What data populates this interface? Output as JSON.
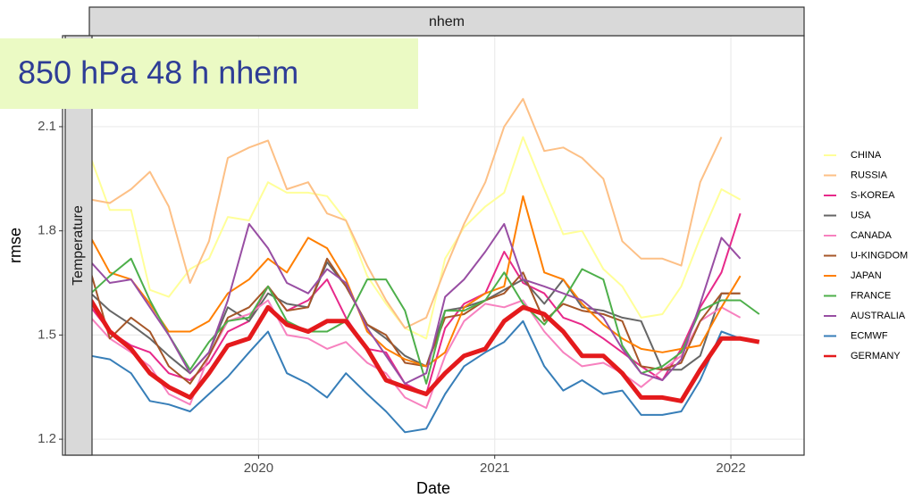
{
  "chart_data": {
    "type": "line",
    "title": "850 hPa 48 h nhem",
    "panel_label": "nhem",
    "row_label": "Temperature",
    "x_label": "Date",
    "y_label": "rmse",
    "x": [
      2019.29,
      2019.37,
      2019.46,
      2019.54,
      2019.62,
      2019.71,
      2019.79,
      2019.87,
      2019.96,
      2020.04,
      2020.12,
      2020.21,
      2020.29,
      2020.37,
      2020.46,
      2020.54,
      2020.62,
      2020.71,
      2020.79,
      2020.87,
      2020.96,
      2021.04,
      2021.12,
      2021.21,
      2021.29,
      2021.37,
      2021.46,
      2021.54,
      2021.62,
      2021.71,
      2021.79,
      2021.87,
      2021.96,
      2022.04,
      2022.12
    ],
    "xlim": [
      2019.17,
      2022.31
    ],
    "xticks": [
      2020,
      2021,
      2022
    ],
    "ylim": [
      1.154,
      2.362
    ],
    "yticks": [
      1.2,
      1.5,
      1.8,
      2.1
    ],
    "grid": true,
    "legend": "right",
    "series": [
      {
        "name": "CHINA",
        "color": "#ffff99",
        "width": 2,
        "values": [
          2.01,
          1.86,
          1.86,
          1.63,
          1.61,
          1.69,
          1.72,
          1.84,
          1.83,
          1.94,
          1.91,
          1.91,
          1.9,
          1.83,
          1.67,
          1.59,
          1.52,
          1.49,
          1.72,
          1.81,
          1.87,
          1.91,
          2.07,
          1.92,
          1.79,
          1.8,
          1.69,
          1.64,
          1.55,
          1.56,
          1.64,
          1.78,
          1.92,
          1.89,
          null
        ]
      },
      {
        "name": "RUSSIA",
        "color": "#fdc086",
        "width": 2,
        "values": [
          1.89,
          1.88,
          1.92,
          1.97,
          1.87,
          1.65,
          1.77,
          2.01,
          2.04,
          2.06,
          1.92,
          1.94,
          1.85,
          1.83,
          1.7,
          1.6,
          1.52,
          1.55,
          1.69,
          1.82,
          1.94,
          2.1,
          2.18,
          2.03,
          2.04,
          2.01,
          1.95,
          1.77,
          1.72,
          1.72,
          1.7,
          1.94,
          2.07,
          null,
          null
        ]
      },
      {
        "name": "S-KOREA",
        "color": "#e7298a",
        "width": 2,
        "values": [
          1.58,
          1.51,
          1.47,
          1.45,
          1.39,
          1.37,
          1.42,
          1.51,
          1.54,
          1.64,
          1.57,
          1.6,
          1.66,
          1.55,
          1.46,
          1.45,
          1.36,
          1.33,
          1.52,
          1.59,
          1.62,
          1.74,
          1.65,
          1.62,
          1.55,
          1.53,
          1.49,
          1.45,
          1.41,
          1.37,
          1.46,
          1.58,
          1.68,
          1.85,
          null
        ]
      },
      {
        "name": "USA",
        "color": "#666666",
        "width": 2,
        "values": [
          1.62,
          1.57,
          1.53,
          1.49,
          1.44,
          1.39,
          1.45,
          1.58,
          1.54,
          1.62,
          1.59,
          1.58,
          1.71,
          1.64,
          1.53,
          1.49,
          1.44,
          1.41,
          1.57,
          1.58,
          1.6,
          1.63,
          1.66,
          1.59,
          1.66,
          1.58,
          1.57,
          1.55,
          1.54,
          1.4,
          1.4,
          1.44,
          1.62,
          1.62,
          null
        ]
      },
      {
        "name": "CANADA",
        "color": "#f781bf",
        "width": 2,
        "values": [
          1.55,
          1.49,
          1.45,
          1.41,
          1.33,
          1.3,
          1.44,
          1.54,
          1.56,
          1.6,
          1.5,
          1.49,
          1.46,
          1.48,
          1.42,
          1.39,
          1.32,
          1.29,
          1.44,
          1.54,
          1.59,
          1.58,
          1.6,
          1.51,
          1.45,
          1.41,
          1.42,
          1.39,
          1.35,
          1.4,
          1.44,
          1.54,
          1.58,
          1.55,
          null
        ]
      },
      {
        "name": "U-KINGDOM",
        "color": "#a65628",
        "width": 2,
        "values": [
          1.68,
          1.49,
          1.55,
          1.51,
          1.41,
          1.36,
          1.44,
          1.55,
          1.58,
          1.64,
          1.57,
          1.58,
          1.72,
          1.64,
          1.53,
          1.5,
          1.42,
          1.41,
          1.55,
          1.56,
          1.6,
          1.62,
          1.68,
          1.54,
          1.59,
          1.57,
          1.56,
          1.54,
          1.41,
          1.4,
          1.42,
          1.54,
          1.62,
          1.62,
          null
        ]
      },
      {
        "name": "JAPAN",
        "color": "#ff7f00",
        "width": 2,
        "values": [
          1.78,
          1.68,
          1.66,
          1.59,
          1.51,
          1.51,
          1.54,
          1.62,
          1.66,
          1.72,
          1.68,
          1.78,
          1.75,
          1.66,
          1.51,
          1.46,
          1.43,
          1.41,
          1.45,
          1.58,
          1.62,
          1.64,
          1.9,
          1.68,
          1.66,
          1.59,
          1.53,
          1.49,
          1.46,
          1.45,
          1.46,
          1.47,
          1.58,
          1.67,
          null
        ]
      },
      {
        "name": "FRANCE",
        "color": "#4daf4a",
        "width": 2,
        "values": [
          1.62,
          1.67,
          1.72,
          1.6,
          1.5,
          1.4,
          1.48,
          1.54,
          1.55,
          1.64,
          1.54,
          1.51,
          1.51,
          1.54,
          1.66,
          1.66,
          1.57,
          1.36,
          1.57,
          1.57,
          1.6,
          1.68,
          1.59,
          1.53,
          1.6,
          1.69,
          1.66,
          1.47,
          1.39,
          1.41,
          1.45,
          1.57,
          1.6,
          1.6,
          1.56
        ]
      },
      {
        "name": "AUSTRALIA",
        "color": "#984ea3",
        "width": 2,
        "values": [
          1.71,
          1.65,
          1.66,
          1.58,
          1.5,
          1.39,
          1.45,
          1.6,
          1.82,
          1.75,
          1.65,
          1.62,
          1.69,
          1.65,
          1.52,
          1.44,
          1.36,
          1.39,
          1.61,
          1.66,
          1.74,
          1.82,
          1.66,
          1.64,
          1.62,
          1.6,
          1.55,
          1.46,
          1.39,
          1.37,
          1.43,
          1.59,
          1.78,
          1.72,
          null
        ]
      },
      {
        "name": "ECMWF",
        "color": "#377eb8",
        "width": 2,
        "values": [
          1.44,
          1.43,
          1.39,
          1.31,
          1.3,
          1.28,
          1.33,
          1.38,
          1.45,
          1.51,
          1.39,
          1.36,
          1.32,
          1.39,
          1.33,
          1.28,
          1.22,
          1.23,
          1.33,
          1.41,
          1.45,
          1.48,
          1.54,
          1.41,
          1.34,
          1.37,
          1.33,
          1.34,
          1.27,
          1.27,
          1.28,
          1.37,
          1.51,
          1.49,
          null
        ]
      },
      {
        "name": "GERMANY",
        "color": "#e41a1c",
        "width": 5,
        "values": [
          1.6,
          1.51,
          1.46,
          1.39,
          1.35,
          1.32,
          1.39,
          1.47,
          1.49,
          1.58,
          1.53,
          1.51,
          1.54,
          1.54,
          1.46,
          1.37,
          1.35,
          1.33,
          1.39,
          1.44,
          1.46,
          1.54,
          1.58,
          1.56,
          1.51,
          1.44,
          1.44,
          1.39,
          1.32,
          1.32,
          1.31,
          1.4,
          1.49,
          1.49,
          1.48
        ]
      }
    ]
  }
}
